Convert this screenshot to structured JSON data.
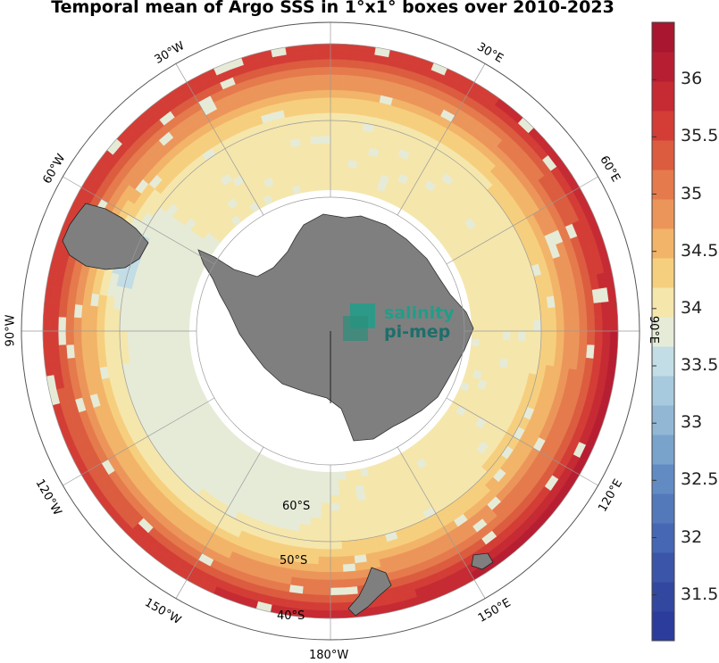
{
  "title": "Temporal mean of Argo SSS in 1°x1° boxes over 2010-2023",
  "colorbar": {
    "ticks": [
      "36",
      "35.5",
      "35",
      "34.5",
      "34",
      "33.5",
      "33",
      "32.5",
      "32",
      "31.5"
    ],
    "range": [
      31.1,
      36.5
    ],
    "colors": [
      "#2b3c9c",
      "#32479f",
      "#3b55a8",
      "#4667b3",
      "#5479bb",
      "#638bc3",
      "#7aa3cc",
      "#91b7d5",
      "#a8cade",
      "#c2dde6",
      "#e6ebd8",
      "#f5e6ac",
      "#f6cf7e",
      "#f2b468",
      "#ec955a",
      "#e57a4c",
      "#dc5c3f",
      "#d33d36",
      "#c62a33",
      "#b81e32",
      "#a8162f"
    ]
  },
  "longitude_labels": [
    "30°W",
    "30°E",
    "60°W",
    "60°E",
    "90°W",
    "90°E",
    "120°W",
    "120°E",
    "150°W",
    "150°E",
    "180°W"
  ],
  "latitude_labels": [
    "60°S",
    "50°S",
    "40°S"
  ],
  "logo": {
    "line1": "salinity",
    "line2": "pi-mep"
  },
  "colors": {
    "land": "#7f7f7f",
    "grid": "#9a9a9a",
    "ring": "#e6ebd8"
  }
}
